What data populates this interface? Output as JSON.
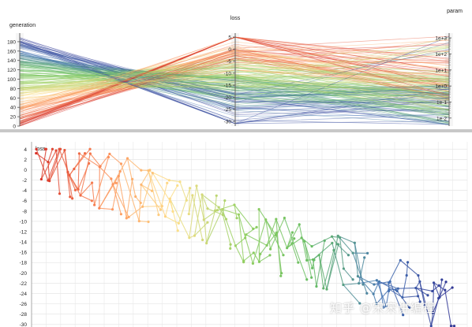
{
  "chart_data": [
    {
      "type": "parallel-coordinates",
      "axes": [
        {
          "name": "generation",
          "ticks": [
            "0",
            "20",
            "40",
            "60",
            "80",
            "100",
            "120",
            "140",
            "160",
            "180"
          ],
          "range": [
            0,
            195
          ]
        },
        {
          "name": "loss",
          "ticks": [
            "5",
            "0",
            "-5",
            "-10",
            "-15",
            "-20",
            "-25",
            "-30"
          ],
          "range": [
            -32,
            6
          ]
        },
        {
          "name": "param",
          "scale": "log",
          "ticks": [
            "1e+3",
            "1e+2",
            "1e+1",
            "1e+0",
            "1e-1",
            "1e-2"
          ],
          "range": [
            -2.5,
            3.2
          ]
        }
      ],
      "color_by": "generation",
      "colormap": [
        "#d73027",
        "#fc8d59",
        "#fee08b",
        "#91cf60",
        "#66bd63",
        "#4575b4",
        "#313695"
      ],
      "line_count": 200
    },
    {
      "type": "scatter",
      "ylabel": "loss",
      "y_ticks": [
        "4",
        "2",
        "0",
        "-2",
        "-4",
        "-6",
        "-8",
        "-10",
        "-12",
        "-14",
        "-16",
        "-18",
        "-20",
        "-22",
        "-24",
        "-26",
        "-28",
        "-30"
      ],
      "ylim": [
        -30.5,
        4.5
      ],
      "grid": true,
      "connected_by_parent": true,
      "color_by": "generation",
      "point_count": 200
    }
  ],
  "watermark": "知乎 @宋宋讲编程"
}
